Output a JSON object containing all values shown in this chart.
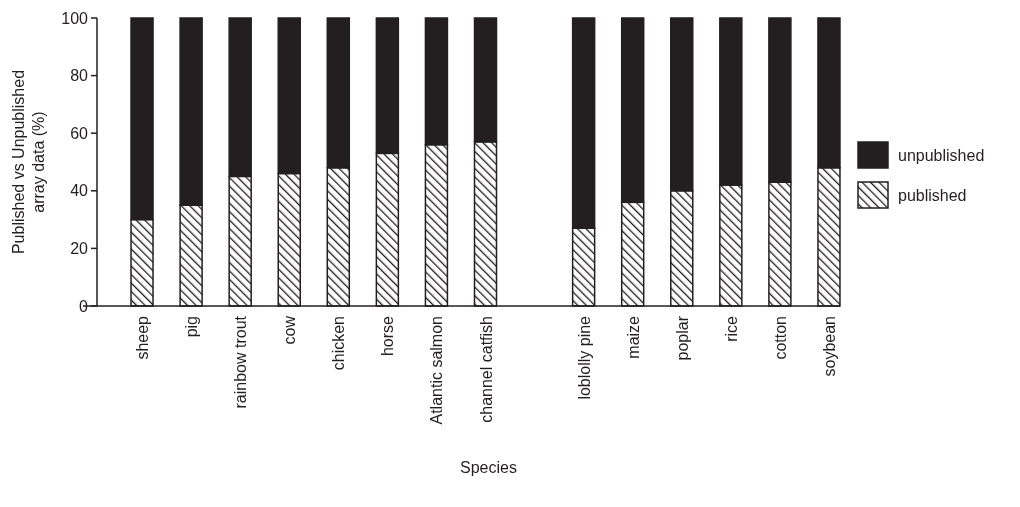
{
  "chart_data": {
    "type": "bar",
    "stacked": true,
    "xlabel": "Species",
    "ylabel": "Published vs Unpublished\narray data (%)",
    "categories": [
      "sheep",
      "pig",
      "rainbow trout",
      "cow",
      "chicken",
      "horse",
      "Atlantic salmon",
      "channel catfish",
      null,
      "loblolly pine",
      "maize",
      "poplar",
      "rice",
      "cotton",
      "soybean"
    ],
    "series": [
      {
        "name": "published",
        "color": "#231f20",
        "values": [
          30,
          35,
          45,
          46,
          48,
          53,
          56,
          57,
          null,
          27,
          36,
          40,
          42,
          43,
          48
        ]
      },
      {
        "name": "unpublished",
        "color": "#231f20",
        "values": [
          70,
          65,
          55,
          54,
          52,
          47,
          44,
          43,
          null,
          73,
          64,
          60,
          58,
          57,
          52
        ]
      }
    ],
    "ylim": [
      0,
      100
    ],
    "yticks": [
      0,
      20,
      40,
      60,
      80,
      100
    ],
    "legend": "right",
    "grid": false
  }
}
